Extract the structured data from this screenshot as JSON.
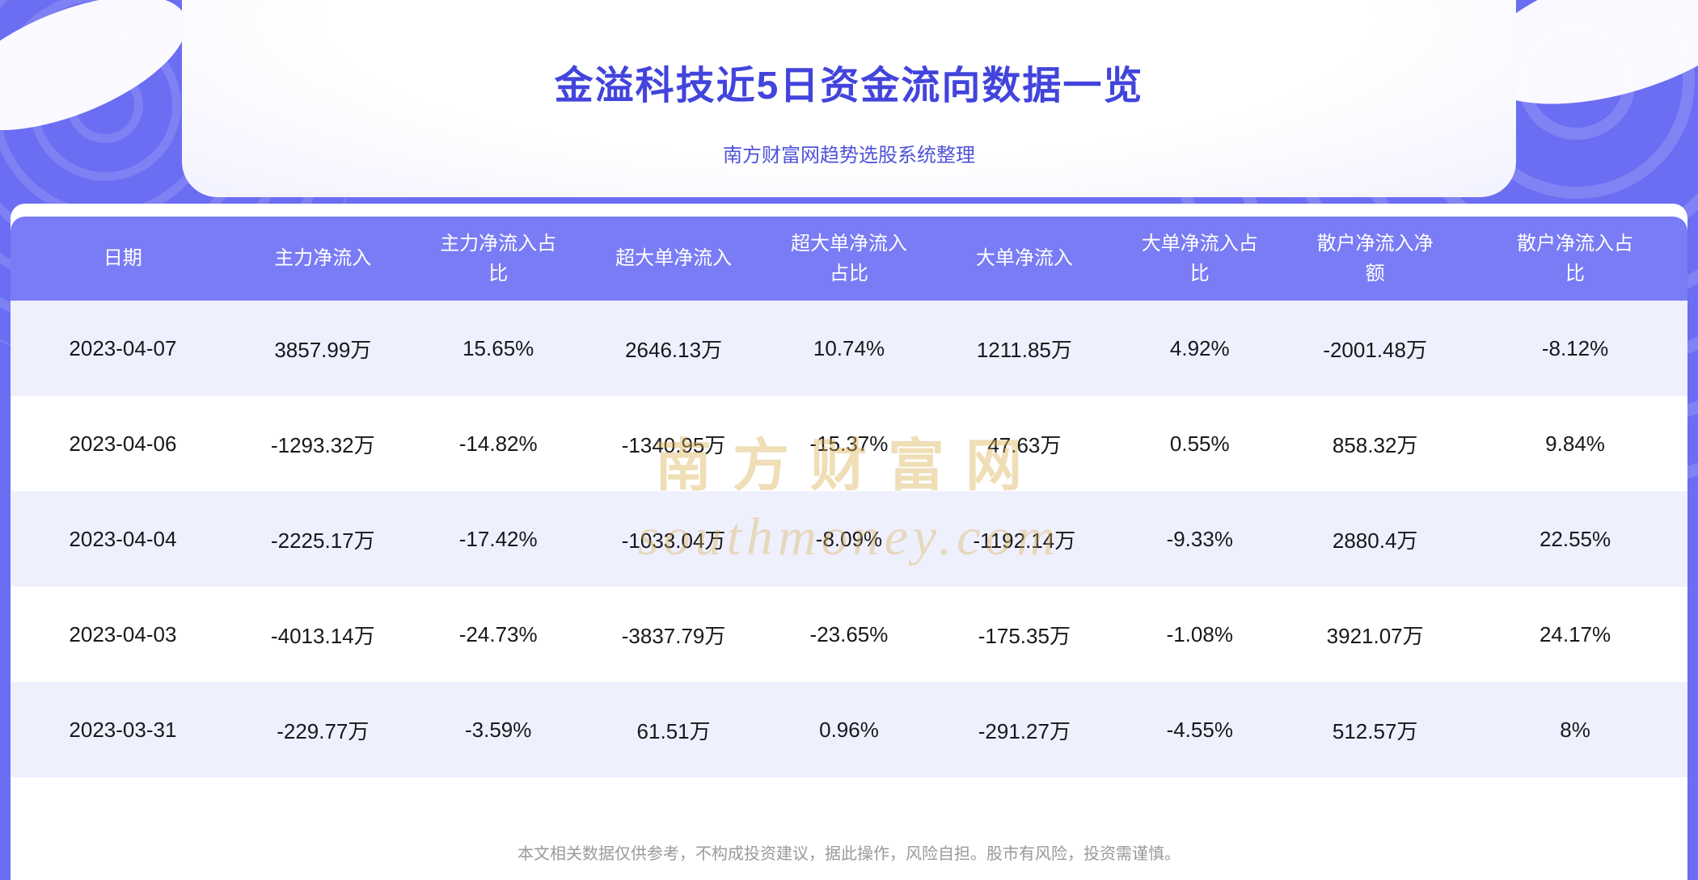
{
  "header": {
    "title": "金溢科技近5日资金流向数据一览",
    "subtitle": "南方财富网趋势选股系统整理"
  },
  "chart_data": {
    "type": "table",
    "title": "金溢科技近5日资金流向数据一览",
    "columns": [
      "日期",
      "主力净流入",
      "主力净流入占比",
      "超大单净流入",
      "超大单净流入占比",
      "大单净流入",
      "大单净流入占比",
      "散户净流入净额",
      "散户净流入占比"
    ],
    "rows": [
      [
        "2023-04-07",
        "3857.99万",
        "15.65%",
        "2646.13万",
        "10.74%",
        "1211.85万",
        "4.92%",
        "-2001.48万",
        "-8.12%"
      ],
      [
        "2023-04-06",
        "-1293.32万",
        "-14.82%",
        "-1340.95万",
        "-15.37%",
        "47.63万",
        "0.55%",
        "858.32万",
        "9.84%"
      ],
      [
        "2023-04-04",
        "-2225.17万",
        "-17.42%",
        "-1033.04万",
        "-8.09%",
        "-1192.14万",
        "-9.33%",
        "2880.4万",
        "22.55%"
      ],
      [
        "2023-04-03",
        "-4013.14万",
        "-24.73%",
        "-3837.79万",
        "-23.65%",
        "-175.35万",
        "-1.08%",
        "3921.07万",
        "24.17%"
      ],
      [
        "2023-03-31",
        "-229.77万",
        "-3.59%",
        "61.51万",
        "0.96%",
        "-291.27万",
        "-4.55%",
        "512.57万",
        "8%"
      ]
    ]
  },
  "watermark": {
    "text_cn": "南方财富网",
    "text_en": "southmoney.com"
  },
  "footer": {
    "disclaimer": "本文相关数据仅供参考，不构成投资建议，据此操作，风险自担。股市有风险，投资需谨慎。"
  },
  "colors": {
    "background": "#6b6df2",
    "table_header": "#797cf4",
    "row_alternate": "#eef0fe",
    "title_text": "#4244dc",
    "watermark_gold": "#d9b051"
  }
}
